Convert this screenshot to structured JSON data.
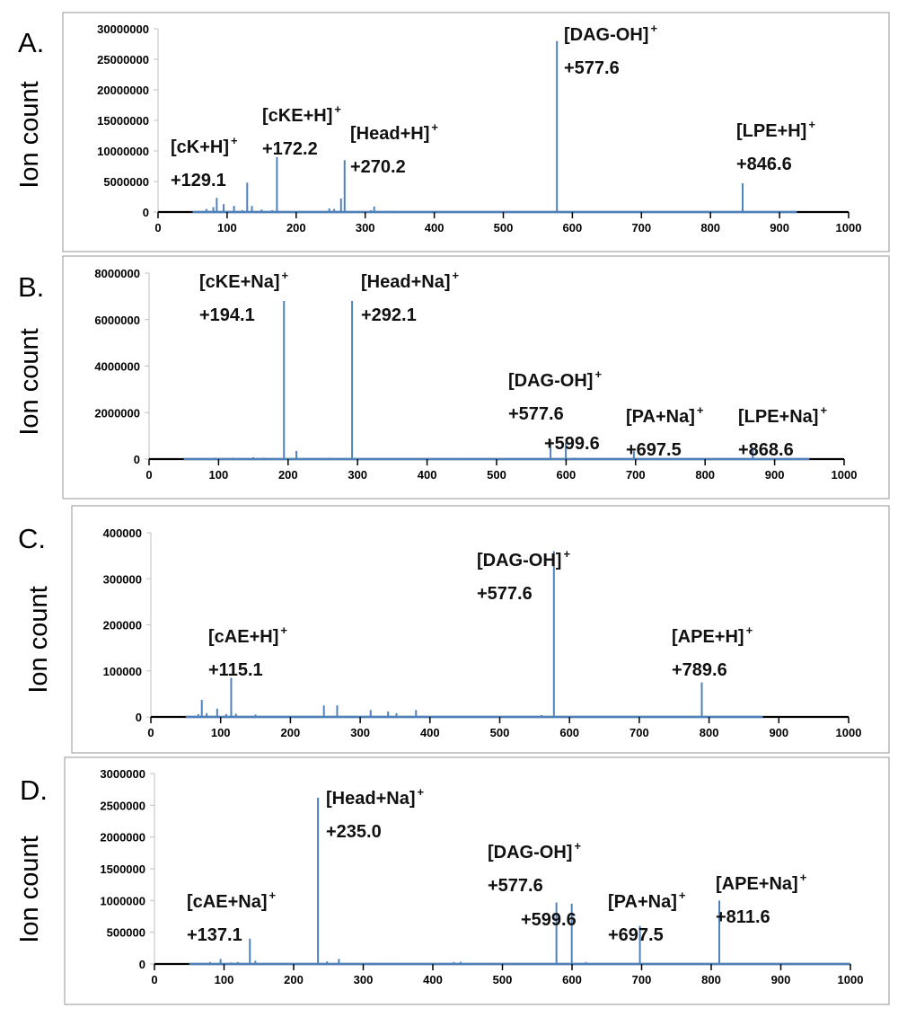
{
  "chart_data": [
    {
      "type": "bar",
      "panel": "A.",
      "ylabel": "Ion count",
      "xlabel": "",
      "xlim": [
        0,
        1000
      ],
      "ylim": [
        0,
        30000000
      ],
      "xticks": [
        0,
        100,
        200,
        300,
        400,
        500,
        600,
        700,
        800,
        900,
        1000
      ],
      "yticks": [
        0,
        5000000,
        10000000,
        15000000,
        20000000,
        25000000,
        30000000
      ],
      "scan_range": [
        50,
        925
      ],
      "peaks": [
        [
          70,
          500000
        ],
        [
          80,
          800000
        ],
        [
          85,
          2300000
        ],
        [
          95,
          1300000
        ],
        [
          110,
          1000000
        ],
        [
          122,
          300000
        ],
        [
          129.1,
          4800000
        ],
        [
          136,
          1000000
        ],
        [
          150,
          400000
        ],
        [
          165,
          300000
        ],
        [
          172.2,
          9000000
        ],
        [
          248,
          600000
        ],
        [
          255,
          500000
        ],
        [
          265,
          2200000
        ],
        [
          270.2,
          8500000
        ],
        [
          308,
          300000
        ],
        [
          313,
          900000
        ],
        [
          340,
          200000
        ],
        [
          577.6,
          28000000
        ],
        [
          846.6,
          4700000
        ]
      ],
      "annotations": [
        {
          "label": "[cK+H]",
          "charge": "+",
          "value": "+129.1"
        },
        {
          "label": "[cKE+H]",
          "charge": "+",
          "value": "+172.2"
        },
        {
          "label": "[Head+H]",
          "charge": "+",
          "value": "+270.2"
        },
        {
          "label": "[DAG-OH]",
          "charge": "+",
          "value": "+577.6"
        },
        {
          "label": "[LPE+H]",
          "charge": "+",
          "value": "+846.6"
        }
      ]
    },
    {
      "type": "bar",
      "panel": "B.",
      "ylabel": "Ion count",
      "xlabel": "",
      "xlim": [
        0,
        1000
      ],
      "ylim": [
        0,
        8000000
      ],
      "xticks": [
        0,
        100,
        200,
        300,
        400,
        500,
        600,
        700,
        800,
        900,
        1000
      ],
      "yticks": [
        0,
        2000000,
        4000000,
        6000000,
        8000000
      ],
      "scan_range": [
        50,
        950
      ],
      "peaks": [
        [
          95,
          60000
        ],
        [
          120,
          60000
        ],
        [
          150,
          80000
        ],
        [
          165,
          60000
        ],
        [
          194.1,
          6800000
        ],
        [
          212,
          350000
        ],
        [
          260,
          60000
        ],
        [
          292.1,
          6800000
        ],
        [
          440,
          50000
        ],
        [
          577.6,
          850000
        ],
        [
          599.6,
          700000
        ],
        [
          612,
          60000
        ],
        [
          697.5,
          350000
        ],
        [
          868.6,
          450000
        ]
      ],
      "annotations": [
        {
          "label": "[cKE+Na]",
          "charge": "+",
          "value": "+194.1"
        },
        {
          "label": "[Head+Na]",
          "charge": "+",
          "value": "+292.1"
        },
        {
          "label": "[DAG-OH]",
          "charge": "+",
          "value": "+577.6"
        },
        {
          "label": "",
          "charge": "",
          "value": "+599.6"
        },
        {
          "label": "[PA+Na]",
          "charge": "+",
          "value": "+697.5"
        },
        {
          "label": "[LPE+Na]",
          "charge": "+",
          "value": "+868.6"
        }
      ]
    },
    {
      "type": "bar",
      "panel": "C.",
      "ylabel": "Ion count",
      "xlabel": "",
      "xlim": [
        0,
        1000
      ],
      "ylim": [
        0,
        400000
      ],
      "xticks": [
        0,
        100,
        200,
        300,
        400,
        500,
        600,
        700,
        800,
        900,
        1000
      ],
      "yticks": [
        0,
        100000,
        200000,
        300000,
        400000
      ],
      "scan_range": [
        50,
        877
      ],
      "peaks": [
        [
          68,
          6000
        ],
        [
          73,
          37000
        ],
        [
          80,
          8000
        ],
        [
          95,
          18000
        ],
        [
          108,
          6000
        ],
        [
          115.1,
          85000
        ],
        [
          122,
          7000
        ],
        [
          150,
          5000
        ],
        [
          248,
          25000
        ],
        [
          267,
          25000
        ],
        [
          315,
          15000
        ],
        [
          340,
          12000
        ],
        [
          352,
          8000
        ],
        [
          380,
          15000
        ],
        [
          560,
          4000
        ],
        [
          577.6,
          360000
        ],
        [
          789.6,
          75000
        ]
      ],
      "annotations": [
        {
          "label": "[DAG-OH]",
          "charge": "+",
          "value": "+577.6"
        },
        {
          "label": "[cAE+H]",
          "charge": "+",
          "value": "+115.1"
        },
        {
          "label": "[APE+H]",
          "charge": "+",
          "value": "+789.6"
        }
      ]
    },
    {
      "type": "bar",
      "panel": "D.",
      "ylabel": "Ion count",
      "xlabel": "",
      "xlim": [
        0,
        1000
      ],
      "ylim": [
        0,
        3000000
      ],
      "xticks": [
        0,
        100,
        200,
        300,
        400,
        500,
        600,
        700,
        800,
        900,
        1000
      ],
      "yticks": [
        0,
        500000,
        1000000,
        1500000,
        2000000,
        2500000,
        3000000
      ],
      "scan_range": [
        50,
        1000
      ],
      "peaks": [
        [
          80,
          30000
        ],
        [
          95,
          80000
        ],
        [
          110,
          25000
        ],
        [
          120,
          30000
        ],
        [
          137.1,
          400000
        ],
        [
          145,
          50000
        ],
        [
          235.0,
          2620000
        ],
        [
          248,
          40000
        ],
        [
          265,
          80000
        ],
        [
          315,
          20000
        ],
        [
          340,
          20000
        ],
        [
          430,
          30000
        ],
        [
          440,
          35000
        ],
        [
          577.6,
          970000
        ],
        [
          599.6,
          950000
        ],
        [
          620,
          30000
        ],
        [
          697.5,
          600000
        ],
        [
          811.6,
          1000000
        ]
      ],
      "annotations": [
        {
          "label": "[Head+Na]",
          "charge": "+",
          "value": "+235.0"
        },
        {
          "label": "[DAG-OH]",
          "charge": "+",
          "value": "+577.6"
        },
        {
          "label": "",
          "charge": "",
          "value": "+599.6"
        },
        {
          "label": "[cAE+Na]",
          "charge": "+",
          "value": "+137.1"
        },
        {
          "label": "[PA+Na]",
          "charge": "+",
          "value": "+697.5"
        },
        {
          "label": "[APE+Na]",
          "charge": "+",
          "value": "+811.6"
        }
      ]
    }
  ],
  "colors": {
    "series": "#4f81bd",
    "axis": "#000000",
    "frame": "#a6a6a6"
  }
}
